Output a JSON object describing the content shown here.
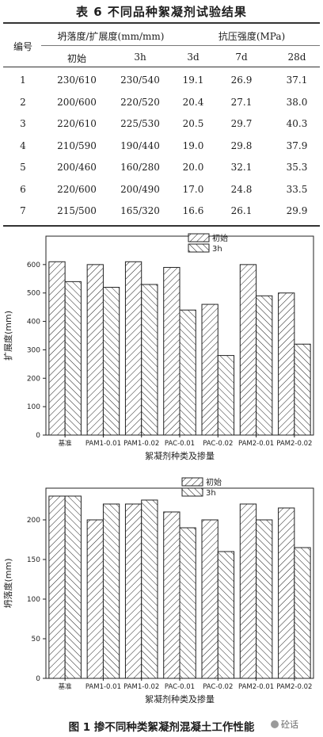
{
  "table": {
    "title": "表 6  不同品种絮凝剂试验结果",
    "headers": {
      "id": "编号",
      "slump_group": "坍落度/扩展度(mm/mm)",
      "strength_group": "抗压强度(MPa)",
      "sub": [
        "初始",
        "3h",
        "3d",
        "7d",
        "28d"
      ]
    },
    "rows": [
      [
        "1",
        "230/610",
        "230/540",
        "19.1",
        "26.9",
        "37.1"
      ],
      [
        "2",
        "200/600",
        "220/520",
        "20.4",
        "27.1",
        "38.0"
      ],
      [
        "3",
        "220/610",
        "225/530",
        "20.5",
        "29.7",
        "40.3"
      ],
      [
        "4",
        "210/590",
        "190/440",
        "19.0",
        "29.8",
        "37.9"
      ],
      [
        "5",
        "200/460",
        "160/280",
        "20.0",
        "32.1",
        "35.3"
      ],
      [
        "6",
        "220/600",
        "200/490",
        "17.0",
        "24.8",
        "33.5"
      ],
      [
        "7",
        "215/500",
        "165/320",
        "16.6",
        "26.1",
        "29.9"
      ]
    ]
  },
  "chart_data": [
    {
      "type": "bar",
      "categories": [
        "基准",
        "PAM1-0.01",
        "PAM1-0.02",
        "PAC-0.01",
        "PAC-0.02",
        "PAM2-0.01",
        "PAM2-0.02"
      ],
      "series": [
        {
          "name": "初始",
          "values": [
            610,
            600,
            610,
            590,
            460,
            600,
            500
          ]
        },
        {
          "name": "3h",
          "values": [
            540,
            520,
            530,
            440,
            280,
            490,
            320
          ]
        }
      ],
      "xlabel": "絮凝剂种类及掺量",
      "ylabel": "扩展度(mm)",
      "ylim": [
        0,
        700
      ],
      "yticks": [
        0,
        100,
        200,
        300,
        400,
        500,
        600
      ],
      "legend": "top-center"
    },
    {
      "type": "bar",
      "categories": [
        "基准",
        "PAM1-0.01",
        "PAM1-0.02",
        "PAC-0.01",
        "PAC-0.02",
        "PAM2-0.01",
        "PAM2-0.02"
      ],
      "series": [
        {
          "name": "初始",
          "values": [
            230,
            200,
            220,
            210,
            200,
            220,
            215
          ]
        },
        {
          "name": "3h",
          "values": [
            230,
            220,
            225,
            190,
            160,
            200,
            165
          ]
        }
      ],
      "xlabel": "絮凝剂种类及掺量",
      "ylabel": "坍落度(mm)",
      "ylim": [
        0,
        240
      ],
      "yticks": [
        0,
        50,
        100,
        150,
        200
      ],
      "legend": "top-center"
    }
  ],
  "figure_caption": "图 1  掺不同种类絮凝剂混凝土工作性能",
  "watermark": "砼话"
}
